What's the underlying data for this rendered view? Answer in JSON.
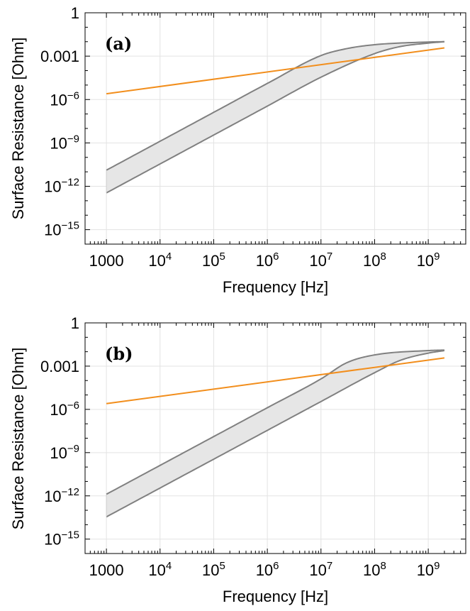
{
  "chart_data": [
    {
      "type": "line",
      "panel_label": "(a)",
      "xlabel": "Frequency [Hz]",
      "ylabel": "Surface Resistance [Ohm]",
      "xscale": "log",
      "yscale": "log",
      "xlim": [
        400,
        5000000000
      ],
      "ylim": [
        1e-16,
        1
      ],
      "x_ticks": [
        {
          "value": 1000,
          "base": "1000",
          "exp": ""
        },
        {
          "value": 10000,
          "base": "10",
          "exp": "4"
        },
        {
          "value": 100000,
          "base": "10",
          "exp": "5"
        },
        {
          "value": 1000000,
          "base": "10",
          "exp": "6"
        },
        {
          "value": 10000000,
          "base": "10",
          "exp": "7"
        },
        {
          "value": 100000000,
          "base": "10",
          "exp": "8"
        },
        {
          "value": 1000000000,
          "base": "10",
          "exp": "9"
        }
      ],
      "y_ticks": [
        {
          "value": 1,
          "base": "1",
          "exp": ""
        },
        {
          "value": 0.001,
          "base": "0.001",
          "exp": ""
        },
        {
          "value": 1e-06,
          "base": "10",
          "exp": "−6"
        },
        {
          "value": 1e-09,
          "base": "10",
          "exp": "−9"
        },
        {
          "value": 1e-12,
          "base": "10",
          "exp": "−12"
        },
        {
          "value": 1e-15,
          "base": "10",
          "exp": "−15"
        }
      ],
      "grid": true,
      "colors": {
        "band_line": "#808080",
        "band_fill": "#e6e6e6",
        "reference_line": "#f28e1c"
      },
      "series": [
        {
          "role": "band-upper",
          "x": [
            1000,
            10000,
            100000,
            1000000,
            10000000,
            30000000,
            100000000,
            1000000000,
            2000000000
          ],
          "y": [
            1.3e-11,
            1.3e-09,
            1.3e-07,
            1.3e-05,
            0.0011,
            0.0033,
            0.0062,
            0.0095,
            0.01
          ]
        },
        {
          "role": "band-lower",
          "x": [
            1000,
            10000,
            100000,
            1000000,
            10000000,
            100000000,
            300000000,
            1000000000,
            2000000000
          ],
          "y": [
            3.5e-13,
            3.5e-11,
            3.5e-09,
            3.5e-07,
            3.5e-05,
            0.0015,
            0.0046,
            0.008,
            0.01
          ]
        },
        {
          "role": "reference",
          "x": [
            1000,
            2000000000
          ],
          "y": [
            2.5e-06,
            0.0037
          ]
        }
      ]
    },
    {
      "type": "line",
      "panel_label": "(b)",
      "xlabel": "Frequency [Hz]",
      "ylabel": "Surface Resistance [Ohm]",
      "xscale": "log",
      "yscale": "log",
      "xlim": [
        400,
        5000000000
      ],
      "ylim": [
        1e-16,
        1
      ],
      "x_ticks": [
        {
          "value": 1000,
          "base": "1000",
          "exp": ""
        },
        {
          "value": 10000,
          "base": "10",
          "exp": "4"
        },
        {
          "value": 100000,
          "base": "10",
          "exp": "5"
        },
        {
          "value": 1000000,
          "base": "10",
          "exp": "6"
        },
        {
          "value": 10000000,
          "base": "10",
          "exp": "7"
        },
        {
          "value": 100000000,
          "base": "10",
          "exp": "8"
        },
        {
          "value": 1000000000,
          "base": "10",
          "exp": "9"
        }
      ],
      "y_ticks": [
        {
          "value": 1,
          "base": "1",
          "exp": ""
        },
        {
          "value": 0.001,
          "base": "0.001",
          "exp": ""
        },
        {
          "value": 1e-06,
          "base": "10",
          "exp": "−6"
        },
        {
          "value": 1e-09,
          "base": "10",
          "exp": "−9"
        },
        {
          "value": 1e-12,
          "base": "10",
          "exp": "−12"
        },
        {
          "value": 1e-15,
          "base": "10",
          "exp": "−15"
        }
      ],
      "grid": true,
      "colors": {
        "band_line": "#808080",
        "band_fill": "#e6e6e6",
        "reference_line": "#f28e1c"
      },
      "series": [
        {
          "role": "band-upper",
          "x": [
            1000,
            10000,
            100000,
            1000000,
            10000000,
            30000000,
            100000000,
            1000000000,
            2000000000
          ],
          "y": [
            1.3e-12,
            1.3e-10,
            1.3e-08,
            1.3e-06,
            0.00013,
            0.0017,
            0.006,
            0.012,
            0.013
          ]
        },
        {
          "role": "band-lower",
          "x": [
            1000,
            10000,
            100000,
            1000000,
            10000000,
            100000000,
            300000000,
            1000000000,
            2000000000
          ],
          "y": [
            3.5e-14,
            3.5e-12,
            3.5e-10,
            3.5e-08,
            3.5e-06,
            0.00035,
            0.0025,
            0.008,
            0.012
          ]
        },
        {
          "role": "reference",
          "x": [
            1000,
            2000000000
          ],
          "y": [
            2.5e-06,
            0.0037
          ]
        }
      ]
    }
  ]
}
